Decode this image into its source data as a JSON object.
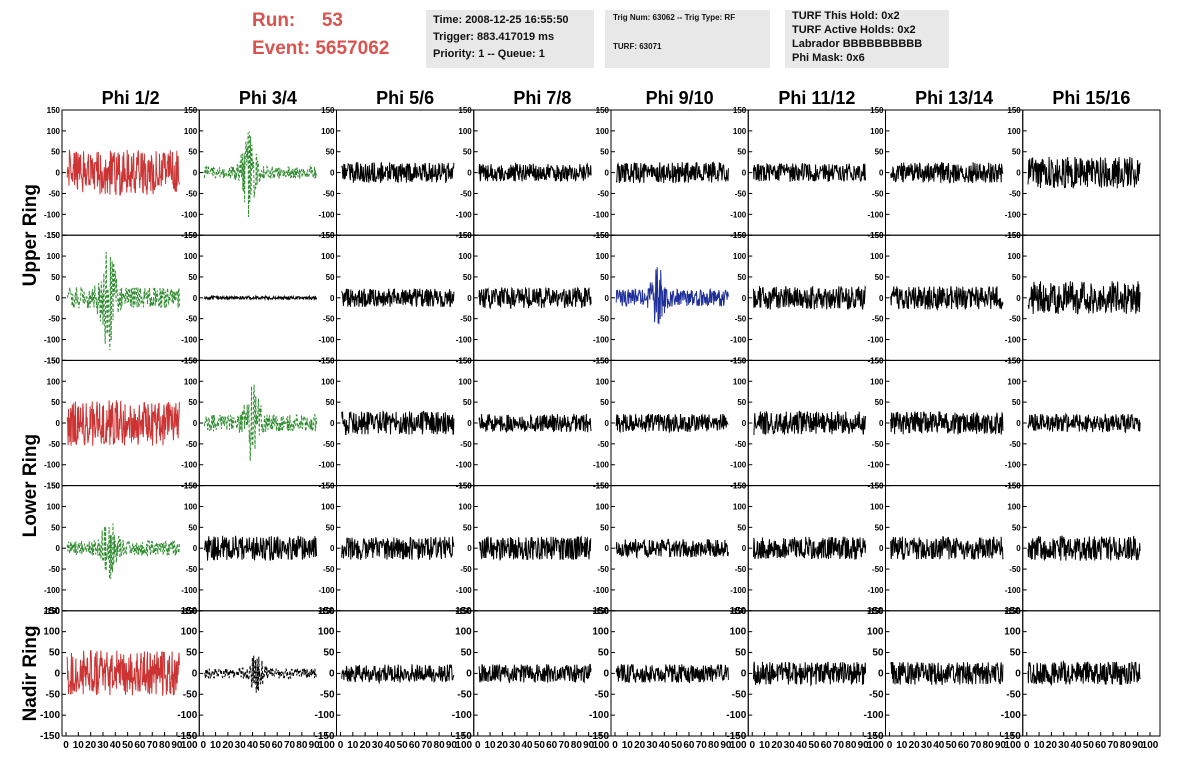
{
  "header": {
    "run_label": "Run:",
    "run_value": "53",
    "event_label": "Event:",
    "event_value": "5657062"
  },
  "info_time": {
    "time": "Time: 2008-12-25 16:55:50",
    "trigger": "Trigger: 883.417019 ms",
    "priority": "Priority: 1 -- Queue: 1"
  },
  "info_trig": {
    "trig": "Trig Num: 63062 -- Trig Type: RF",
    "turf": "TURF: 63071"
  },
  "info_turf": {
    "this_hold": "TURF This Hold: 0x2",
    "active_holds": "TURF Active Holds: 0x2",
    "labrador": "Labrador BBBBBBBBBB",
    "phi_mask": "Phi Mask: 0x6"
  },
  "colors": {
    "red": "#cc3333",
    "green": "#2e8b2e",
    "blue": "#1f2f9a",
    "black": "#000000",
    "title_red": "#d9534f",
    "info_bg": "#e8e8e8"
  },
  "chart_data": {
    "type": "line",
    "title": "",
    "xlabel": "",
    "ylabel": "",
    "xlim": [
      0,
      100
    ],
    "ylim": [
      -150,
      150
    ],
    "x_ticks": [
      0,
      10,
      20,
      30,
      40,
      50,
      60,
      70,
      80,
      90,
      100
    ],
    "y_ticks": [
      -150,
      -100,
      -50,
      0,
      50,
      100,
      150
    ],
    "columns": [
      "Phi 1/2",
      "Phi 3/4",
      "Phi 5/6",
      "Phi 7/8",
      "Phi 9/10",
      "Phi 11/12",
      "Phi 13/14",
      "Phi 15/16"
    ],
    "row_groups": [
      {
        "label": "Upper Ring",
        "rows": [
          0,
          1
        ]
      },
      {
        "label": "Lower Ring",
        "rows": [
          2,
          3
        ]
      },
      {
        "label": "Nadir Ring",
        "rows": [
          4
        ]
      }
    ],
    "waveforms": [
      [
        {
          "style": "solid",
          "color": "red",
          "amp": 55,
          "pulse": 0
        },
        {
          "style": "dashed",
          "color": "green",
          "amp": 15,
          "pulse": 95,
          "pulse_center": 37
        },
        {
          "style": "solid",
          "color": "black",
          "amp": 25,
          "pulse": 0
        },
        {
          "style": "solid",
          "color": "black",
          "amp": 22,
          "pulse": 0
        },
        {
          "style": "solid",
          "color": "black",
          "amp": 25,
          "pulse": 0
        },
        {
          "style": "solid",
          "color": "black",
          "amp": 22,
          "pulse": 0
        },
        {
          "style": "solid",
          "color": "black",
          "amp": 25,
          "pulse": 0
        },
        {
          "style": "solid",
          "color": "black",
          "amp": 38,
          "pulse": 0
        }
      ],
      [
        {
          "style": "dashed",
          "color": "green",
          "amp": 25,
          "pulse": 115,
          "pulse_center": 34
        },
        {
          "style": "solid",
          "color": "black",
          "amp": 4,
          "pulse": 0
        },
        {
          "style": "solid",
          "color": "black",
          "amp": 22,
          "pulse": 0
        },
        {
          "style": "solid",
          "color": "black",
          "amp": 25,
          "pulse": 0
        },
        {
          "style": "solid",
          "color": "blue",
          "amp": 20,
          "pulse": 55,
          "pulse_center": 35
        },
        {
          "style": "solid",
          "color": "black",
          "amp": 28,
          "pulse": 0
        },
        {
          "style": "solid",
          "color": "black",
          "amp": 28,
          "pulse": 0
        },
        {
          "style": "solid",
          "color": "black",
          "amp": 40,
          "pulse": 0
        }
      ],
      [
        {
          "style": "solid",
          "color": "red",
          "amp": 55,
          "pulse": 0
        },
        {
          "style": "dashed",
          "color": "green",
          "amp": 20,
          "pulse": 95,
          "pulse_center": 40
        },
        {
          "style": "solid",
          "color": "black",
          "amp": 28,
          "pulse": 0
        },
        {
          "style": "solid",
          "color": "black",
          "amp": 22,
          "pulse": 0
        },
        {
          "style": "solid",
          "color": "black",
          "amp": 22,
          "pulse": 0
        },
        {
          "style": "solid",
          "color": "black",
          "amp": 28,
          "pulse": 0
        },
        {
          "style": "solid",
          "color": "black",
          "amp": 28,
          "pulse": 0
        },
        {
          "style": "solid",
          "color": "black",
          "amp": 22,
          "pulse": 0
        }
      ],
      [
        {
          "style": "dashed",
          "color": "green",
          "amp": 18,
          "pulse": 60,
          "pulse_center": 35
        },
        {
          "style": "solid",
          "color": "black",
          "amp": 30,
          "pulse": 0
        },
        {
          "style": "solid",
          "color": "black",
          "amp": 28,
          "pulse": 0
        },
        {
          "style": "solid",
          "color": "black",
          "amp": 28,
          "pulse": 0
        },
        {
          "style": "solid",
          "color": "black",
          "amp": 22,
          "pulse": 0
        },
        {
          "style": "solid",
          "color": "black",
          "amp": 28,
          "pulse": 0
        },
        {
          "style": "solid",
          "color": "black",
          "amp": 28,
          "pulse": 0
        },
        {
          "style": "solid",
          "color": "black",
          "amp": 30,
          "pulse": 0
        }
      ],
      [
        {
          "style": "solid",
          "color": "red",
          "amp": 55,
          "pulse": 0
        },
        {
          "style": "dashed",
          "color": "black",
          "amp": 12,
          "pulse": 35,
          "pulse_center": 43
        },
        {
          "style": "solid",
          "color": "black",
          "amp": 22,
          "pulse": 0
        },
        {
          "style": "solid",
          "color": "black",
          "amp": 22,
          "pulse": 0
        },
        {
          "style": "solid",
          "color": "black",
          "amp": 22,
          "pulse": 0
        },
        {
          "style": "solid",
          "color": "black",
          "amp": 28,
          "pulse": 0
        },
        {
          "style": "solid",
          "color": "black",
          "amp": 28,
          "pulse": 0
        },
        {
          "style": "solid",
          "color": "black",
          "amp": 28,
          "pulse": 0
        }
      ]
    ]
  }
}
